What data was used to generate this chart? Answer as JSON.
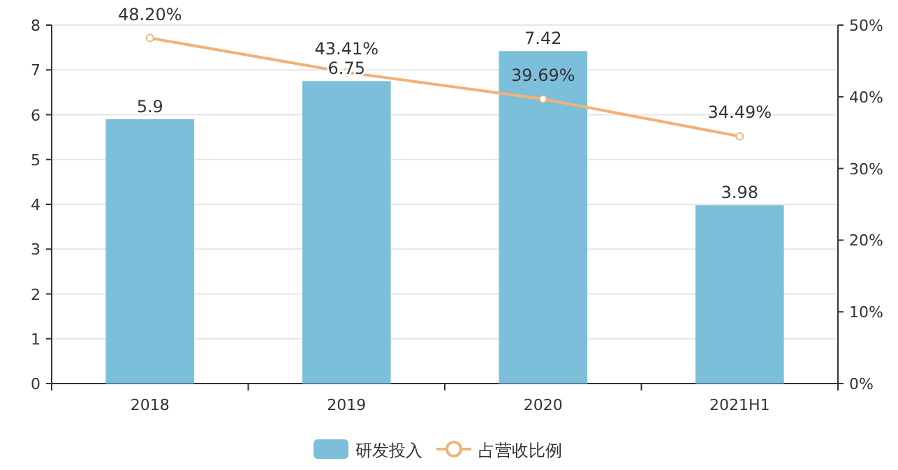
{
  "chart_data": {
    "type": "bar",
    "categories": [
      "2018",
      "2019",
      "2020",
      "2021H1"
    ],
    "series": [
      {
        "name": "研发投入",
        "color": "#7bbfda",
        "values": [
          5.9,
          6.75,
          7.42,
          3.98
        ],
        "value_labels": [
          "5.9",
          "6.75",
          "7.42",
          "3.98"
        ]
      },
      {
        "name": "占营收比例",
        "type": "line",
        "axis": "y2",
        "color": "#f0b27a",
        "values": [
          48.2,
          43.41,
          39.69,
          34.49
        ],
        "value_labels": [
          "48.20%",
          "43.41%",
          "39.69%",
          "34.49%"
        ]
      }
    ],
    "marker": "circle",
    "ylim": [
      0,
      8
    ],
    "yticks": [
      0,
      1,
      2,
      3,
      4,
      5,
      6,
      7,
      8
    ],
    "y2lim": [
      0,
      50
    ],
    "y2ticks": [
      {
        "value": 0,
        "label": "0%"
      },
      {
        "value": 10,
        "label": "10%"
      },
      {
        "value": 20,
        "label": "20%"
      },
      {
        "value": 30,
        "label": "30%"
      },
      {
        "value": 40,
        "label": "40%"
      },
      {
        "value": 50,
        "label": "50%"
      }
    ],
    "grid": "y",
    "legend": "bottom"
  }
}
